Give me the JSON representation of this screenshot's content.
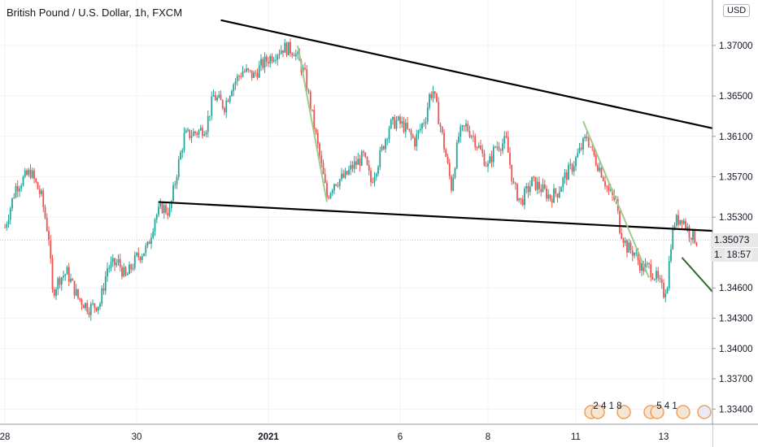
{
  "header": {
    "title": "British Pound / U.S. Dollar, 1h, FXCM",
    "currency_button": "USD"
  },
  "price_scale": {
    "last_price": "1.35073",
    "countdown": "18:57",
    "countdown_prefix": "1."
  },
  "events": {
    "group1_label": "2 4 1 8",
    "group2_label": "5 4 1"
  },
  "colors": {
    "up": "#26a69a",
    "down": "#ef5350",
    "trendline": "#000000",
    "projection_arrow": "#2e6b2e",
    "swing_line": "#9ccc8f"
  },
  "chart_data": {
    "type": "candlestick",
    "title": "British Pound / U.S. Dollar, 1h, FXCM",
    "ylim": [
      1.3325,
      1.3745
    ],
    "y_ticks": [
      1.334,
      1.337,
      1.34,
      1.343,
      1.346,
      1.353,
      1.357,
      1.361,
      1.365,
      1.37
    ],
    "y_tick_labels": [
      "1.33400",
      "1.33700",
      "1.34000",
      "1.34300",
      "1.34600",
      "1.35300",
      "1.35700",
      "1.36100",
      "1.36500",
      "1.37000"
    ],
    "x_labels": [
      "28",
      "30",
      "2021",
      "6",
      "8",
      "11",
      "13"
    ],
    "x_span_hours": [
      0,
      384
    ],
    "x_label_hours": [
      0,
      72,
      144,
      216,
      264,
      312,
      360
    ],
    "current_price": 1.35073,
    "path": [
      [
        0,
        1.352
      ],
      [
        6,
        1.356
      ],
      [
        14,
        1.3575
      ],
      [
        20,
        1.355
      ],
      [
        24,
        1.351
      ],
      [
        26,
        1.3455
      ],
      [
        30,
        1.347
      ],
      [
        34,
        1.3475
      ],
      [
        40,
        1.345
      ],
      [
        46,
        1.344
      ],
      [
        52,
        1.3445
      ],
      [
        56,
        1.348
      ],
      [
        62,
        1.3485
      ],
      [
        66,
        1.347
      ],
      [
        72,
        1.349
      ],
      [
        78,
        1.35
      ],
      [
        82,
        1.353
      ],
      [
        86,
        1.354
      ],
      [
        90,
        1.3535
      ],
      [
        94,
        1.3575
      ],
      [
        98,
        1.361
      ],
      [
        106,
        1.3615
      ],
      [
        110,
        1.362
      ],
      [
        114,
        1.365
      ],
      [
        120,
        1.364
      ],
      [
        124,
        1.366
      ],
      [
        130,
        1.3675
      ],
      [
        136,
        1.367
      ],
      [
        140,
        1.368
      ],
      [
        146,
        1.369
      ],
      [
        152,
        1.3698
      ],
      [
        158,
        1.3695
      ],
      [
        164,
        1.367
      ],
      [
        168,
        1.363
      ],
      [
        172,
        1.359
      ],
      [
        176,
        1.355
      ],
      [
        180,
        1.3565
      ],
      [
        186,
        1.357
      ],
      [
        190,
        1.358
      ],
      [
        196,
        1.359
      ],
      [
        200,
        1.3565
      ],
      [
        204,
        1.3585
      ],
      [
        210,
        1.362
      ],
      [
        214,
        1.3625
      ],
      [
        218,
        1.362
      ],
      [
        224,
        1.3605
      ],
      [
        230,
        1.363
      ],
      [
        232,
        1.365
      ],
      [
        234,
        1.3655
      ],
      [
        238,
        1.362
      ],
      [
        242,
        1.358
      ],
      [
        244,
        1.356
      ],
      [
        248,
        1.361
      ],
      [
        252,
        1.362
      ],
      [
        256,
        1.361
      ],
      [
        260,
        1.3595
      ],
      [
        264,
        1.358
      ],
      [
        268,
        1.36
      ],
      [
        274,
        1.3605
      ],
      [
        278,
        1.356
      ],
      [
        282,
        1.3545
      ],
      [
        288,
        1.3565
      ],
      [
        292,
        1.356
      ],
      [
        298,
        1.355
      ],
      [
        302,
        1.3555
      ],
      [
        306,
        1.357
      ],
      [
        310,
        1.358
      ],
      [
        314,
        1.3595
      ],
      [
        318,
        1.361
      ],
      [
        322,
        1.359
      ],
      [
        326,
        1.3575
      ],
      [
        330,
        1.3555
      ],
      [
        334,
        1.3545
      ],
      [
        336,
        1.352
      ],
      [
        340,
        1.35
      ],
      [
        344,
        1.3495
      ],
      [
        348,
        1.348
      ],
      [
        352,
        1.348
      ],
      [
        356,
        1.347
      ],
      [
        360,
        1.3455
      ],
      [
        362,
        1.3465
      ],
      [
        364,
        1.3505
      ],
      [
        366,
        1.3525
      ],
      [
        370,
        1.353
      ],
      [
        374,
        1.3515
      ],
      [
        378,
        1.3507
      ]
    ],
    "annotations": {
      "upper_trendline": [
        [
          118,
          1.3725
        ],
        [
          432,
          1.36
        ]
      ],
      "lower_trendline": [
        [
          84,
          1.3545
        ],
        [
          402,
          1.3515
        ]
      ],
      "swing_lines": [
        [
          [
            160,
            1.37
          ],
          [
            176,
            1.3545
          ]
        ],
        [
          [
            316,
            1.3625
          ],
          [
            352,
            1.347
          ]
        ]
      ],
      "projection_arrow": [
        [
          370,
          1.349
        ],
        [
          412,
          1.3405
        ]
      ]
    }
  }
}
